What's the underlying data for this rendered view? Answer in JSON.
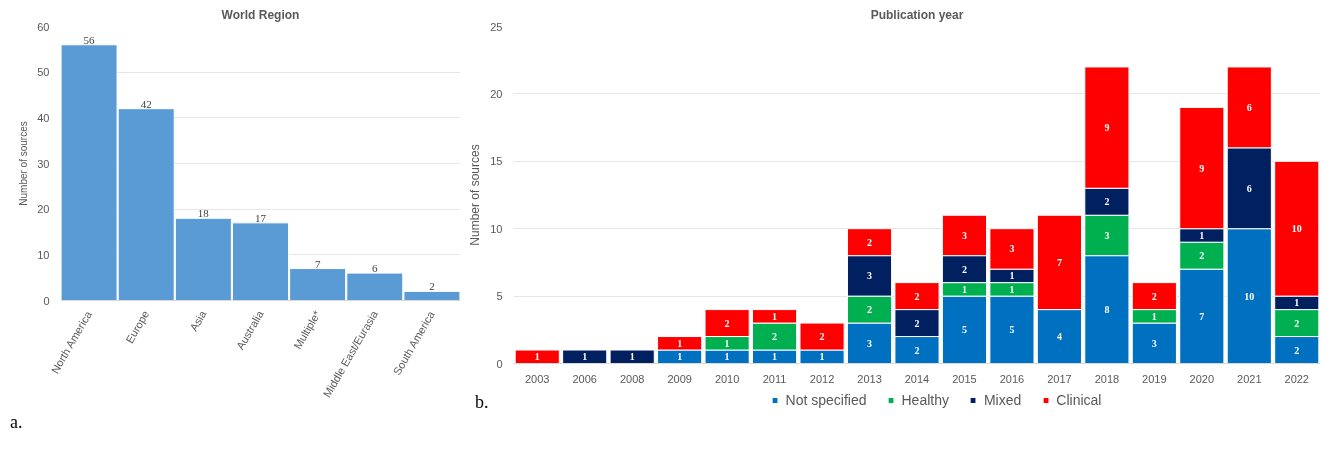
{
  "chart_data": [
    {
      "type": "bar",
      "title": "World Region",
      "ylabel": "Number of sources",
      "categories": [
        "North America",
        "Europe",
        "Asia",
        "Australia",
        "Multiple*",
        "Middle East/Eurasia",
        "South America"
      ],
      "values": [
        56,
        42,
        18,
        17,
        7,
        6,
        2
      ],
      "color": "#5b9bd5",
      "ylim": [
        0,
        60
      ],
      "yticks": [
        0,
        10,
        20,
        30,
        40,
        50,
        60
      ],
      "grid": "y",
      "data_labels": true,
      "annotations": [
        "a."
      ]
    },
    {
      "type": "bar",
      "title": "Publication year",
      "ylabel": "Number of sources",
      "stacked": true,
      "categories": [
        "2003",
        "2006",
        "2008",
        "2009",
        "2010",
        "2011",
        "2012",
        "2013",
        "2014",
        "2015",
        "2016",
        "2017",
        "2018",
        "2019",
        "2020",
        "2021",
        "2022"
      ],
      "series": [
        {
          "name": "Not specified",
          "color": "#0070c0",
          "values": [
            null,
            null,
            null,
            1,
            1,
            1,
            1,
            3,
            2,
            5,
            5,
            4,
            8,
            3,
            7,
            10,
            2
          ]
        },
        {
          "name": "Healthy",
          "color": "#00b050",
          "values": [
            null,
            null,
            null,
            null,
            1,
            2,
            null,
            2,
            null,
            1,
            1,
            null,
            3,
            1,
            2,
            null,
            2
          ]
        },
        {
          "name": "Mixed",
          "color": "#002060",
          "values": [
            null,
            1,
            1,
            null,
            null,
            null,
            null,
            3,
            2,
            2,
            1,
            null,
            2,
            null,
            1,
            6,
            1
          ]
        },
        {
          "name": "Clinical",
          "color": "#ff0000",
          "values": [
            1,
            null,
            null,
            1,
            2,
            1,
            2,
            2,
            2,
            3,
            3,
            7,
            9,
            2,
            9,
            6,
            10
          ]
        }
      ],
      "ylim": [
        0,
        25
      ],
      "yticks": [
        0,
        5,
        10,
        15,
        20,
        25
      ],
      "grid": "y",
      "legend": "bottom",
      "data_labels": true,
      "annotations": [
        "b."
      ]
    }
  ]
}
